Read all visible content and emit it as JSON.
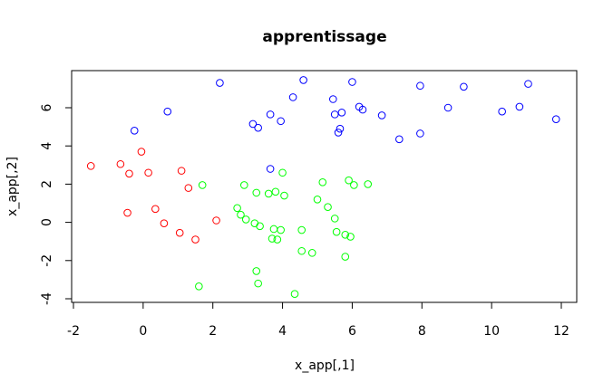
{
  "chart_data": {
    "type": "scatter",
    "title": "apprentissage",
    "xlabel": "x_app[,1]",
    "ylabel": "x_app[,2]",
    "xlim": [
      -2,
      12
    ],
    "ylim": [
      -4,
      7
    ],
    "xticks": [
      -2,
      0,
      2,
      4,
      6,
      8,
      10,
      12
    ],
    "yticks": [
      -4,
      -2,
      0,
      2,
      4,
      6
    ],
    "colors": {
      "blue": "#0000ff",
      "red": "#ff0000",
      "green": "#00ff00"
    },
    "series": [
      {
        "name": "blue",
        "color": "#0000ff",
        "points": [
          [
            2.2,
            7.3
          ],
          [
            4.6,
            7.45
          ],
          [
            6.0,
            7.35
          ],
          [
            7.95,
            7.15
          ],
          [
            9.2,
            7.1
          ],
          [
            11.05,
            7.25
          ],
          [
            4.3,
            6.55
          ],
          [
            5.45,
            6.45
          ],
          [
            0.7,
            5.8
          ],
          [
            3.65,
            5.65
          ],
          [
            5.5,
            5.65
          ],
          [
            5.7,
            5.75
          ],
          [
            6.2,
            6.05
          ],
          [
            6.3,
            5.9
          ],
          [
            6.85,
            5.6
          ],
          [
            8.75,
            6.0
          ],
          [
            10.3,
            5.8
          ],
          [
            10.8,
            6.05
          ],
          [
            11.85,
            5.4
          ],
          [
            3.15,
            5.15
          ],
          [
            3.3,
            4.95
          ],
          [
            3.95,
            5.3
          ],
          [
            5.65,
            4.9
          ],
          [
            5.6,
            4.7
          ],
          [
            7.35,
            4.35
          ],
          [
            7.95,
            4.65
          ],
          [
            -0.25,
            4.8
          ],
          [
            3.65,
            2.8
          ]
        ]
      },
      {
        "name": "red",
        "color": "#ff0000",
        "points": [
          [
            -0.05,
            3.7
          ],
          [
            -1.5,
            2.95
          ],
          [
            -0.65,
            3.05
          ],
          [
            -0.4,
            2.55
          ],
          [
            0.15,
            2.6
          ],
          [
            1.1,
            2.7
          ],
          [
            1.3,
            1.8
          ],
          [
            -0.45,
            0.5
          ],
          [
            0.35,
            0.7
          ],
          [
            0.6,
            -0.05
          ],
          [
            2.1,
            0.1
          ],
          [
            1.05,
            -0.55
          ],
          [
            1.5,
            -0.9
          ]
        ]
      },
      {
        "name": "green",
        "color": "#00ff00",
        "points": [
          [
            1.7,
            1.95
          ],
          [
            2.9,
            1.95
          ],
          [
            4.0,
            2.6
          ],
          [
            5.15,
            2.1
          ],
          [
            5.9,
            2.2
          ],
          [
            6.05,
            1.95
          ],
          [
            6.45,
            2.0
          ],
          [
            3.25,
            1.55
          ],
          [
            3.6,
            1.5
          ],
          [
            3.8,
            1.6
          ],
          [
            4.05,
            1.4
          ],
          [
            5.0,
            1.2
          ],
          [
            5.3,
            0.8
          ],
          [
            2.7,
            0.75
          ],
          [
            2.8,
            0.4
          ],
          [
            2.95,
            0.15
          ],
          [
            3.2,
            -0.05
          ],
          [
            3.35,
            -0.2
          ],
          [
            5.5,
            0.2
          ],
          [
            3.75,
            -0.35
          ],
          [
            3.95,
            -0.4
          ],
          [
            4.55,
            -0.4
          ],
          [
            5.55,
            -0.5
          ],
          [
            5.8,
            -0.65
          ],
          [
            5.95,
            -0.75
          ],
          [
            3.7,
            -0.85
          ],
          [
            3.85,
            -0.9
          ],
          [
            4.55,
            -1.5
          ],
          [
            4.85,
            -1.6
          ],
          [
            5.8,
            -1.8
          ],
          [
            3.25,
            -2.55
          ],
          [
            3.3,
            -3.2
          ],
          [
            1.6,
            -3.35
          ],
          [
            4.35,
            -3.75
          ]
        ]
      }
    ]
  }
}
